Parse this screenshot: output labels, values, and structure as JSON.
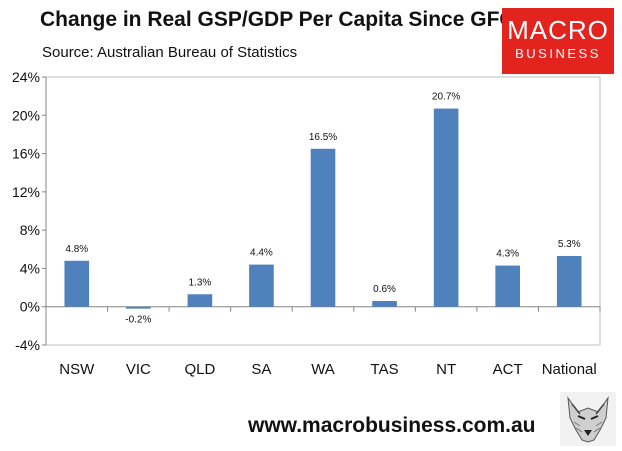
{
  "header": {
    "title": "Change in Real GSP/GDP Per Capita Since GFC",
    "subtitle": "Source: Australian Bureau of Statistics"
  },
  "logo": {
    "line1": "MACRO",
    "line2": "BUSINESS",
    "icon": "wolf-icon"
  },
  "footer": {
    "url": "www.macrobusiness.com.au"
  },
  "colors": {
    "bar": "#4f81bd",
    "plot_bg": "#ffffff",
    "brand": "#e3231e"
  },
  "chart_data": {
    "type": "bar",
    "title": "Change in Real GSP/GDP Per Capita Since GFC",
    "subtitle": "Source: Australian Bureau of Statistics",
    "xlabel": "",
    "ylabel": "",
    "categories": [
      "NSW",
      "VIC",
      "QLD",
      "SA",
      "WA",
      "TAS",
      "NT",
      "ACT",
      "National"
    ],
    "values": [
      4.8,
      -0.2,
      1.3,
      4.4,
      16.5,
      0.6,
      20.7,
      4.3,
      5.3
    ],
    "data_labels": [
      "4.8%",
      "-0.2%",
      "1.3%",
      "4.4%",
      "16.5%",
      "0.6%",
      "20.7%",
      "4.3%",
      "5.3%"
    ],
    "ylim": [
      -4,
      24
    ],
    "yticks": [
      -4,
      0,
      4,
      8,
      12,
      16,
      20,
      24
    ],
    "ytick_labels": [
      "-4%",
      "0%",
      "4%",
      "8%",
      "12%",
      "16%",
      "20%",
      "24%"
    ],
    "grid": false,
    "legend": "none"
  }
}
